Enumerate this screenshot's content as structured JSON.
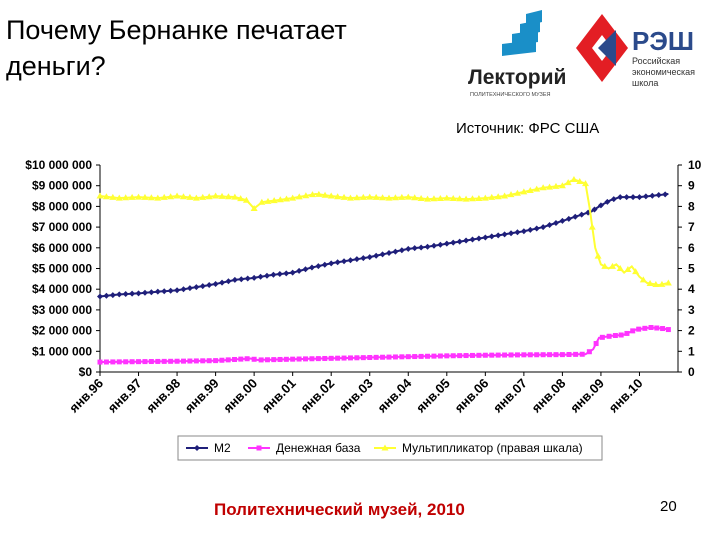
{
  "slide": {
    "title_line1": "Почему Бернанке печатает",
    "title_line2": "деньги?",
    "source": "Источник: ФРС США",
    "footer": "Политехнический музей, 2010",
    "page_number": "20",
    "logo_lectory_text": "Лекторий",
    "logo_lectory_sub": "ПОЛИТЕХНИЧЕСКОГО МУЗЕЯ",
    "logo_nes_text": "РЭШ",
    "logo_nes_sub1": "Российская",
    "logo_nes_sub2": "экономическая",
    "logo_nes_sub3": "школа"
  },
  "colors": {
    "m2": "#1f1f7a",
    "base": "#ff33ff",
    "mult": "#ffff33",
    "lectory": "#1a8fc8",
    "nes_red": "#e31e24",
    "nes_blue": "#2b4a8b"
  },
  "chart_data": {
    "type": "line",
    "x_start_year": 1996,
    "x_ticks": [
      "янв.96",
      "янв.97",
      "янв.98",
      "янв.99",
      "янв.00",
      "янв.01",
      "янв.02",
      "янв.03",
      "янв.04",
      "янв.05",
      "янв.06",
      "янв.07",
      "янв.08",
      "янв.09",
      "янв.10"
    ],
    "y_left": {
      "min": 0,
      "max": 10000000,
      "ticks": [
        "$0",
        "$1 000 000",
        "$2 000 000",
        "$3 000 000",
        "$4 000 000",
        "$5 000 000",
        "$6 000 000",
        "$7 000 000",
        "$8 000 000",
        "$9 000 000",
        "$10 000 000"
      ]
    },
    "y_right": {
      "min": 0,
      "max": 10,
      "ticks": [
        "0",
        "1",
        "2",
        "3",
        "4",
        "5",
        "6",
        "7",
        "8",
        "9",
        "10"
      ]
    },
    "legend_position": "bottom",
    "grid": false,
    "series": [
      {
        "name": "M2",
        "axis": "left",
        "marker": "diamond",
        "points": [
          [
            1996.0,
            3650000
          ],
          [
            1996.5,
            3750000
          ],
          [
            1997.0,
            3800000
          ],
          [
            1997.5,
            3880000
          ],
          [
            1998.0,
            3950000
          ],
          [
            1998.5,
            4100000
          ],
          [
            1999.0,
            4250000
          ],
          [
            1999.5,
            4450000
          ],
          [
            2000.0,
            4550000
          ],
          [
            2000.5,
            4700000
          ],
          [
            2001.0,
            4800000
          ],
          [
            2001.5,
            5050000
          ],
          [
            2002.0,
            5250000
          ],
          [
            2002.5,
            5400000
          ],
          [
            2003.0,
            5550000
          ],
          [
            2003.5,
            5750000
          ],
          [
            2004.0,
            5950000
          ],
          [
            2004.5,
            6050000
          ],
          [
            2005.0,
            6200000
          ],
          [
            2005.5,
            6350000
          ],
          [
            2006.0,
            6500000
          ],
          [
            2006.5,
            6650000
          ],
          [
            2007.0,
            6800000
          ],
          [
            2007.5,
            7000000
          ],
          [
            2008.0,
            7300000
          ],
          [
            2008.5,
            7600000
          ],
          [
            2008.75,
            7750000
          ],
          [
            2009.0,
            8050000
          ],
          [
            2009.25,
            8300000
          ],
          [
            2009.5,
            8450000
          ],
          [
            2010.0,
            8450000
          ],
          [
            2010.5,
            8550000
          ],
          [
            2010.75,
            8600000
          ]
        ]
      },
      {
        "name": "Денежная база",
        "axis": "left",
        "marker": "square",
        "points": [
          [
            1996.0,
            480000
          ],
          [
            1997.0,
            500000
          ],
          [
            1998.0,
            520000
          ],
          [
            1999.0,
            550000
          ],
          [
            1999.9,
            650000
          ],
          [
            2000.1,
            580000
          ],
          [
            2001.0,
            620000
          ],
          [
            2002.0,
            660000
          ],
          [
            2003.0,
            700000
          ],
          [
            2004.0,
            740000
          ],
          [
            2005.0,
            780000
          ],
          [
            2006.0,
            810000
          ],
          [
            2007.0,
            830000
          ],
          [
            2008.0,
            840000
          ],
          [
            2008.6,
            860000
          ],
          [
            2008.8,
            1100000
          ],
          [
            2008.95,
            1650000
          ],
          [
            2009.3,
            1750000
          ],
          [
            2009.6,
            1800000
          ],
          [
            2009.9,
            2050000
          ],
          [
            2010.3,
            2150000
          ],
          [
            2010.6,
            2100000
          ],
          [
            2010.75,
            2050000
          ]
        ]
      },
      {
        "name": "Мультипликатор (правая шкала)",
        "axis": "right",
        "marker": "triangle",
        "points": [
          [
            1996.0,
            8.5
          ],
          [
            1996.5,
            8.4
          ],
          [
            1997.0,
            8.45
          ],
          [
            1997.5,
            8.4
          ],
          [
            1998.0,
            8.5
          ],
          [
            1998.5,
            8.4
          ],
          [
            1999.0,
            8.5
          ],
          [
            1999.5,
            8.45
          ],
          [
            1999.8,
            8.3
          ],
          [
            2000.0,
            7.9
          ],
          [
            2000.2,
            8.2
          ],
          [
            2000.6,
            8.3
          ],
          [
            2001.0,
            8.4
          ],
          [
            2001.6,
            8.6
          ],
          [
            2002.0,
            8.5
          ],
          [
            2002.5,
            8.4
          ],
          [
            2003.0,
            8.45
          ],
          [
            2003.5,
            8.4
          ],
          [
            2004.0,
            8.45
          ],
          [
            2004.5,
            8.35
          ],
          [
            2005.0,
            8.4
          ],
          [
            2005.5,
            8.35
          ],
          [
            2006.0,
            8.4
          ],
          [
            2006.5,
            8.5
          ],
          [
            2007.0,
            8.7
          ],
          [
            2007.5,
            8.9
          ],
          [
            2008.0,
            9.0
          ],
          [
            2008.3,
            9.3
          ],
          [
            2008.6,
            9.1
          ],
          [
            2008.7,
            8.0
          ],
          [
            2008.85,
            6.0
          ],
          [
            2009.0,
            5.2
          ],
          [
            2009.2,
            5.0
          ],
          [
            2009.4,
            5.2
          ],
          [
            2009.6,
            4.8
          ],
          [
            2009.8,
            5.1
          ],
          [
            2010.0,
            4.6
          ],
          [
            2010.2,
            4.3
          ],
          [
            2010.5,
            4.2
          ],
          [
            2010.75,
            4.3
          ]
        ]
      }
    ]
  }
}
